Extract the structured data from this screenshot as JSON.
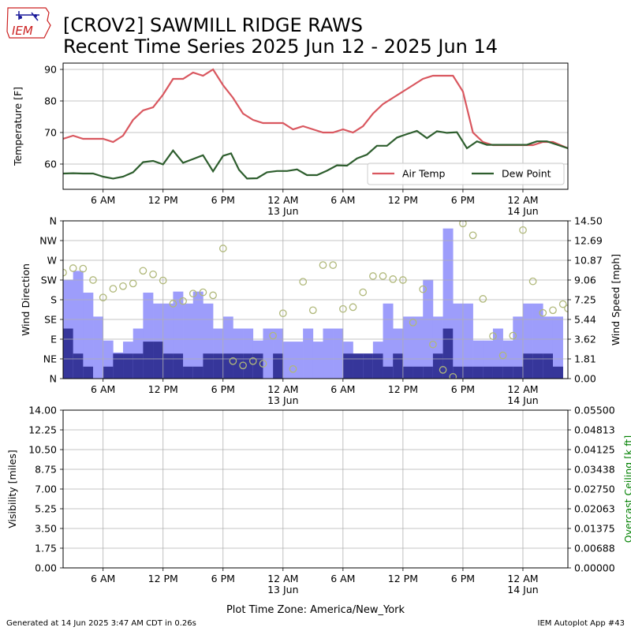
{
  "header": {
    "logo_text": "IEM",
    "title_line1": "[CROV2] SAWMILL RIDGE RAWS",
    "title_line2": "Recent Time Series 2025 Jun 12 - 2025 Jun 14"
  },
  "footer": {
    "generated": "Generated at 14 Jun 2025 3:47 AM CDT in 0.26s",
    "app": "IEM Autoplot App #43",
    "timezone_label": "Plot Time Zone: America/New_York"
  },
  "colors": {
    "air_temp": "#d9575f",
    "dew_point": "#2e5e2e",
    "wind_speed": "#9d9dfb",
    "wind_gust_base": "#36369a",
    "wind_direction": "#b0b87a",
    "grid": "#b0b0b0",
    "ceiling_label": "#008000"
  },
  "chart_data": [
    {
      "type": "line",
      "x_ticks": [
        "6 AM",
        "12 PM",
        "6 PM",
        "12 AM\n13 Jun",
        "6 AM",
        "12 PM",
        "6 PM",
        "12 AM\n14 Jun"
      ],
      "x_tick_hours": [
        6,
        12,
        18,
        24,
        30,
        36,
        42,
        48
      ],
      "xlim_hours": [
        2,
        52.5
      ],
      "ylabel": "Temperature [F]",
      "ylim": [
        52,
        92
      ],
      "y_ticks": [
        60,
        70,
        80,
        90
      ],
      "grid": true,
      "legend_position": "lower-right",
      "series": [
        {
          "name": "Air Temp",
          "hours": [
            2,
            3,
            4,
            5,
            6,
            7,
            8,
            9,
            10,
            11,
            12,
            13,
            14,
            15,
            16,
            17,
            18,
            19,
            20,
            21,
            22,
            23,
            24,
            25,
            26,
            27,
            28,
            29,
            30,
            31,
            32,
            33,
            34,
            35,
            36,
            37,
            38,
            39,
            40,
            41,
            42,
            43,
            44,
            45,
            46,
            47,
            48,
            49,
            50,
            51,
            52.5
          ],
          "values": [
            68,
            69,
            68,
            68,
            68,
            67,
            69,
            74,
            77,
            78,
            82,
            87,
            87,
            89,
            88,
            90,
            85,
            81,
            76,
            74,
            73,
            73,
            73,
            71,
            72,
            71,
            70,
            70,
            71,
            70,
            72,
            76,
            79,
            81,
            83,
            85,
            87,
            88,
            88,
            88,
            83,
            70,
            67,
            66,
            66,
            66,
            66,
            66,
            67,
            67,
            65
          ]
        },
        {
          "name": "Dew Point",
          "hours": [
            2,
            3,
            4,
            5,
            6,
            7,
            8,
            9,
            10,
            11,
            12,
            13,
            14,
            15,
            16,
            17,
            18,
            18.8,
            19.6,
            20.4,
            21.4,
            22.4,
            23.4,
            24.4,
            25.4,
            26.4,
            27.4,
            28.4,
            29.4,
            30.4,
            31.4,
            32.4,
            33.4,
            34.4,
            35.4,
            36.4,
            37.4,
            38.4,
            39.4,
            40.4,
            41.4,
            42.4,
            43.4,
            44.4,
            45.4,
            46.4,
            47.4,
            48.4,
            49.4,
            50.4,
            52.5
          ],
          "values": [
            57,
            57.1,
            57,
            57,
            56,
            55.4,
            56,
            57.4,
            60.6,
            61,
            59.9,
            64.3,
            60.4,
            61.6,
            62.8,
            57.7,
            62.6,
            63.4,
            58.2,
            55.4,
            55.5,
            57.4,
            57.8,
            57.8,
            58.3,
            56.5,
            56.5,
            57.9,
            59.6,
            59.5,
            61.8,
            63,
            65.8,
            65.8,
            68.4,
            69.5,
            70.5,
            68.2,
            70.4,
            69.9,
            70.1,
            65,
            67.2,
            66.1,
            66.1,
            66.1,
            66.1,
            66.1,
            67.2,
            67.2,
            65
          ]
        }
      ]
    },
    {
      "type": "bar",
      "x_ticks": [
        "6 AM",
        "12 PM",
        "6 PM",
        "12 AM\n13 Jun",
        "6 AM",
        "12 PM",
        "6 PM",
        "12 AM\n14 Jun"
      ],
      "x_tick_hours": [
        6,
        12,
        18,
        24,
        30,
        36,
        42,
        48
      ],
      "xlim_hours": [
        2,
        52.5
      ],
      "ylabel_left": "Wind Direction",
      "ylabel_right": "Wind Speed [mph]",
      "direction_ticks": [
        "N",
        "NE",
        "E",
        "SE",
        "S",
        "SW",
        "W",
        "NW",
        "N"
      ],
      "direction_tick_degrees": [
        0,
        45,
        90,
        135,
        180,
        225,
        270,
        315,
        360
      ],
      "speed_ticks": [
        "0.00",
        "1.81",
        "3.62",
        "5.44",
        "7.25",
        "9.06",
        "10.87",
        "12.69",
        "14.50"
      ],
      "speed_ylim": [
        0,
        14.5
      ],
      "grid": true,
      "bin_hours": 1,
      "bin_start_hours": [
        2,
        3,
        4,
        5,
        6,
        7,
        8,
        9,
        10,
        11,
        12,
        13,
        14,
        15,
        16,
        17,
        18,
        19,
        20,
        21,
        22,
        23,
        24,
        25,
        26,
        27,
        28,
        29,
        30,
        31,
        32,
        33,
        34,
        35,
        36,
        37,
        38,
        39,
        40,
        41,
        42,
        43,
        44,
        45,
        46,
        47,
        48,
        49,
        50,
        51
      ],
      "speed_values": [
        9.1,
        9.9,
        7.9,
        5.7,
        3.5,
        2.4,
        3.4,
        4.6,
        7.9,
        6.9,
        6.9,
        8.0,
        6.9,
        8.0,
        6.9,
        4.6,
        5.7,
        4.6,
        4.6,
        3.5,
        4.6,
        4.6,
        3.4,
        3.4,
        4.6,
        3.4,
        4.6,
        4.6,
        3.4,
        2.3,
        2.3,
        3.4,
        6.9,
        4.6,
        5.7,
        5.7,
        9.1,
        5.7,
        13.8,
        6.9,
        6.9,
        3.5,
        3.5,
        4.6,
        3.5,
        5.7,
        6.9,
        6.9,
        5.7,
        5.7
      ],
      "gust_base_values": [
        4.6,
        2.3,
        1.1,
        0,
        1.1,
        2.3,
        2.3,
        2.3,
        3.4,
        3.4,
        2.3,
        2.3,
        1.1,
        1.1,
        2.3,
        2.3,
        2.3,
        2.3,
        2.3,
        2.3,
        0,
        2.3,
        0,
        0,
        0,
        0,
        0,
        0,
        2.3,
        2.3,
        2.3,
        2.3,
        1.1,
        2.3,
        1.1,
        1.1,
        1.1,
        2.3,
        4.6,
        1.1,
        1.1,
        1.1,
        1.1,
        1.1,
        1.1,
        1.1,
        2.3,
        2.3,
        2.3,
        1.1
      ],
      "direction_hours": [
        2,
        3,
        4,
        5,
        6,
        7,
        8,
        9,
        10,
        11,
        12,
        13,
        14,
        15,
        16,
        17,
        18,
        19,
        20,
        21,
        22,
        23,
        24,
        25,
        26,
        27,
        28,
        29,
        30,
        31,
        32,
        33,
        34,
        35,
        36,
        37,
        38,
        39,
        40,
        41,
        42,
        43,
        44,
        45,
        46,
        47,
        48,
        49,
        50,
        51,
        52,
        52.5
      ],
      "direction_degrees": [
        242,
        252,
        251,
        225,
        185,
        205,
        211,
        217,
        246,
        238,
        224,
        171,
        177,
        194,
        197,
        190,
        297,
        40,
        30,
        40,
        34,
        98,
        149,
        22,
        221,
        156,
        259,
        259,
        159,
        163,
        197,
        234,
        234,
        227,
        225,
        128,
        204,
        78,
        20,
        4,
        354,
        327,
        182,
        97,
        53,
        98,
        339,
        222,
        150,
        156,
        170,
        160
      ]
    },
    {
      "type": "line",
      "x_ticks": [
        "6 AM",
        "12 PM",
        "6 PM",
        "12 AM\n13 Jun",
        "6 AM",
        "12 PM",
        "6 PM",
        "12 AM\n14 Jun"
      ],
      "x_tick_hours": [
        6,
        12,
        18,
        24,
        30,
        36,
        42,
        48
      ],
      "xlim_hours": [
        2,
        52.5
      ],
      "xlabel": "Plot Time Zone: America/New_York",
      "ylabel_left": "Visibility [miles]",
      "ylabel_right": "Overcast Ceiling [k ft]",
      "visibility_ticks": [
        "0.00",
        "1.75",
        "3.50",
        "5.25",
        "7.00",
        "8.75",
        "10.50",
        "12.25",
        "14.00"
      ],
      "ceiling_ticks": [
        "0.00000",
        "0.00688",
        "0.01375",
        "0.02063",
        "0.02750",
        "0.03438",
        "0.04125",
        "0.04813",
        "0.05500"
      ],
      "visibility_ylim": [
        0,
        14
      ],
      "ceiling_ylim": [
        0,
        0.055
      ],
      "grid": true,
      "series": []
    }
  ]
}
